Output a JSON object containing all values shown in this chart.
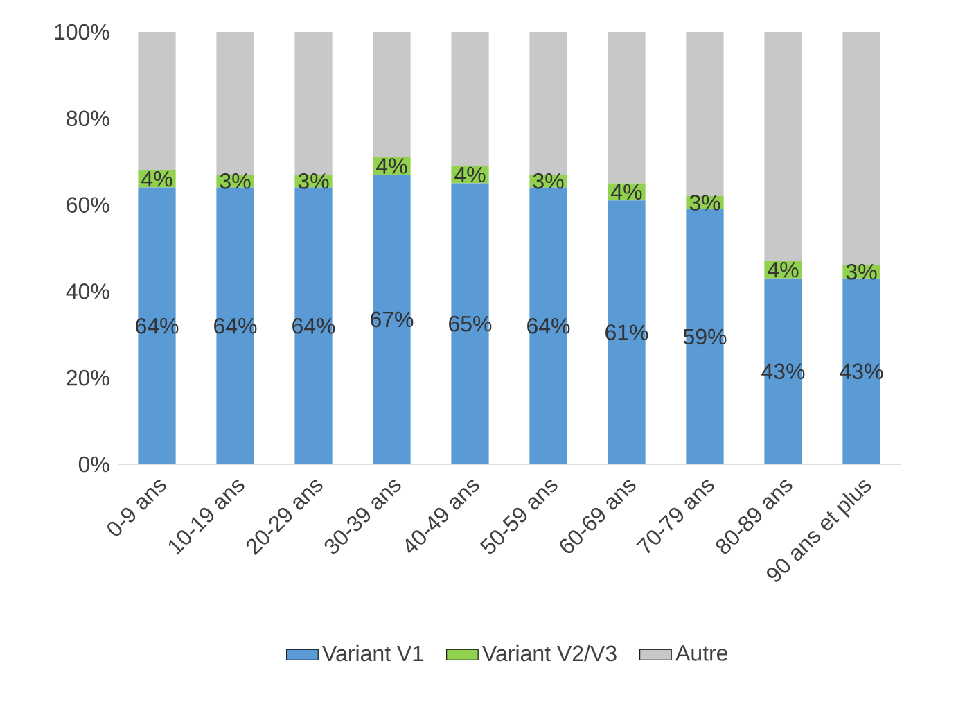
{
  "chart_data": {
    "type": "bar",
    "stacked": true,
    "categories": [
      "0-9 ans",
      "10-19 ans",
      "20-29 ans",
      "30-39 ans",
      "40-49 ans",
      "50-59 ans",
      "60-69 ans",
      "70-79 ans",
      "80-89 ans",
      "90 ans et plus"
    ],
    "series": [
      {
        "name": "Variant V1",
        "color": "#5b9bd5",
        "values": [
          64,
          64,
          64,
          67,
          65,
          64,
          61,
          59,
          43,
          43
        ],
        "value_labels": [
          "64%",
          "64%",
          "64%",
          "67%",
          "65%",
          "64%",
          "61%",
          "59%",
          "43%",
          "43%"
        ]
      },
      {
        "name": "Variant V2/V3",
        "color": "#92d050",
        "values": [
          4,
          3,
          3,
          4,
          4,
          3,
          4,
          3,
          4,
          3
        ],
        "value_labels": [
          "4%",
          "3%",
          "3%",
          "4%",
          "4%",
          "3%",
          "4%",
          "3%",
          "4%",
          "3%"
        ]
      },
      {
        "name": "Autre",
        "color": "#c8c8c8",
        "values": [
          32,
          33,
          33,
          29,
          31,
          33,
          35,
          38,
          53,
          54
        ]
      }
    ],
    "ylim": [
      0,
      100
    ],
    "yticks": [
      {
        "value": 0,
        "label": "0%"
      },
      {
        "value": 20,
        "label": "20%"
      },
      {
        "value": 40,
        "label": "40%"
      },
      {
        "value": 60,
        "label": "60%"
      },
      {
        "value": 80,
        "label": "80%"
      },
      {
        "value": 100,
        "label": "100%"
      }
    ],
    "legend": "bottom"
  }
}
